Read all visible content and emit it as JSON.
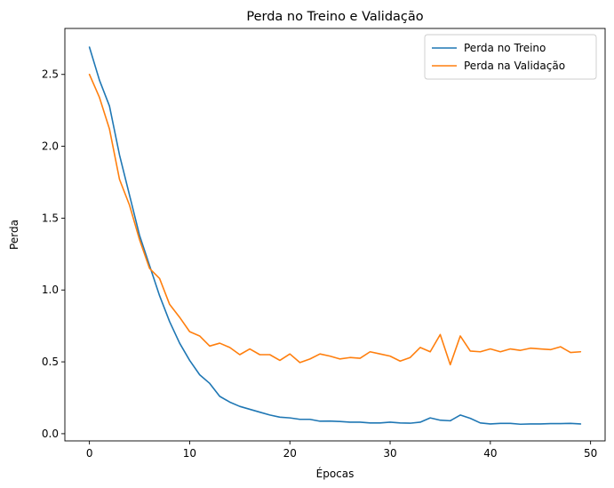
{
  "chart_data": {
    "type": "line",
    "title": "Perda no Treino e Validação",
    "xlabel": "Épocas",
    "ylabel": "Perda",
    "xlim": [
      -2.45,
      51.45
    ],
    "ylim": [
      -0.05,
      2.82
    ],
    "xticks": [
      0,
      10,
      20,
      30,
      40,
      50
    ],
    "xtick_labels": [
      "0",
      "10",
      "20",
      "30",
      "40",
      "50"
    ],
    "yticks": [
      0.0,
      0.5,
      1.0,
      1.5,
      2.0,
      2.5
    ],
    "ytick_labels": [
      "0.0",
      "0.5",
      "1.0",
      "1.5",
      "2.0",
      "2.5"
    ],
    "grid": false,
    "legend_position": "top-right",
    "x": [
      0,
      1,
      2,
      3,
      4,
      5,
      6,
      7,
      8,
      9,
      10,
      11,
      12,
      13,
      14,
      15,
      16,
      17,
      18,
      19,
      20,
      21,
      22,
      23,
      24,
      25,
      26,
      27,
      28,
      29,
      30,
      31,
      32,
      33,
      34,
      35,
      36,
      37,
      38,
      39,
      40,
      41,
      42,
      43,
      44,
      45,
      46,
      47,
      48,
      49
    ],
    "series": [
      {
        "name": "Perda no Treino",
        "color": "#1f77b4",
        "values": [
          2.69,
          2.46,
          2.28,
          1.94,
          1.66,
          1.38,
          1.17,
          0.96,
          0.78,
          0.63,
          0.51,
          0.41,
          0.35,
          0.26,
          0.22,
          0.19,
          0.17,
          0.15,
          0.13,
          0.115,
          0.11,
          0.1,
          0.1,
          0.087,
          0.088,
          0.085,
          0.08,
          0.08,
          0.075,
          0.075,
          0.08,
          0.075,
          0.073,
          0.08,
          0.11,
          0.094,
          0.09,
          0.13,
          0.107,
          0.075,
          0.068,
          0.072,
          0.072,
          0.066,
          0.068,
          0.068,
          0.07,
          0.07,
          0.072,
          0.068
        ]
      },
      {
        "name": "Perda na Validação",
        "color": "#ff7f0e",
        "values": [
          2.5,
          2.34,
          2.12,
          1.77,
          1.59,
          1.35,
          1.15,
          1.08,
          0.9,
          0.81,
          0.71,
          0.68,
          0.61,
          0.63,
          0.6,
          0.55,
          0.59,
          0.55,
          0.55,
          0.51,
          0.555,
          0.495,
          0.52,
          0.555,
          0.54,
          0.52,
          0.53,
          0.525,
          0.57,
          0.555,
          0.54,
          0.505,
          0.53,
          0.6,
          0.57,
          0.69,
          0.48,
          0.68,
          0.575,
          0.57,
          0.59,
          0.57,
          0.59,
          0.58,
          0.595,
          0.59,
          0.585,
          0.605,
          0.565,
          0.57
        ]
      }
    ]
  }
}
